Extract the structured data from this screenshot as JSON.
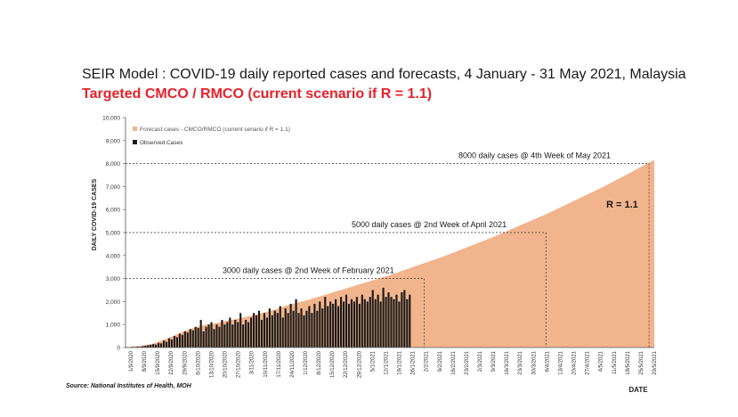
{
  "title": "SEIR Model : COVID-19 daily reported cases and forecasts, 4 January - 31 May 2021, Malaysia",
  "subtitle": "Targeted CMCO / RMCO (current scenario if R = 1.1)",
  "source": "Source: National Institutes of Health, MOH",
  "colors": {
    "forecast": "#f2b48c",
    "observed": "#1a1a1a",
    "subtitle": "#e8202a"
  },
  "chart_data": {
    "type": "bar",
    "title": "",
    "xlabel": "DATE",
    "ylabel": "DAILY COVID-19 CASES",
    "ylim": [
      0,
      10000
    ],
    "yticks": [
      0,
      1000,
      2000,
      3000,
      4000,
      5000,
      6000,
      7000,
      8000,
      9000,
      10000
    ],
    "ytick_labels": [
      "0",
      "1,000",
      "2,000",
      "3,000",
      "4,000",
      "5,000",
      "6,000",
      "7,000",
      "8,000",
      "9,000",
      "10,000"
    ],
    "xtick_labels": [
      "1/9/2020",
      "8/9/2020",
      "15/9/2020",
      "22/9/2020",
      "29/9/2020",
      "6/10/2020",
      "13/10/2020",
      "20/10/2020",
      "27/10/2020",
      "3/11/2020",
      "10/11/2020",
      "17/11/2020",
      "24/11/2020",
      "1/12/2020",
      "8/12/2020",
      "15/12/2020",
      "22/12/2020",
      "29/12/2020",
      "5/1/2021",
      "12/1/2021",
      "19/1/2021",
      "26/1/2021",
      "2/2/2021",
      "9/2/2021",
      "16/2/2021",
      "23/2/2021",
      "2/3/2021",
      "9/3/2021",
      "16/3/2021",
      "23/3/2021",
      "30/3/2021",
      "6/4/2021",
      "13/4/2021",
      "20/4/2021",
      "27/4/2021",
      "4/5/2021",
      "11/5/2021",
      "18/5/2021",
      "25/5/2021",
      "29/5/2021"
    ],
    "grid": false,
    "legend_position": "top-left",
    "legend": [
      "Forecast cases - CMCO/RMCO (current senario if R = 1.1)",
      "Observed Cases"
    ],
    "series": [
      {
        "name": "Forecast cases - CMCO/RMCO (current senario if R = 1.1)",
        "type": "area",
        "points": [
          [
            0,
            0
          ],
          [
            5,
            60
          ],
          [
            10,
            150
          ],
          [
            14,
            320
          ],
          [
            18,
            500
          ],
          [
            22,
            700
          ],
          [
            26,
            870
          ],
          [
            30,
            980
          ],
          [
            34,
            1060
          ],
          [
            38,
            1160
          ],
          [
            42,
            1240
          ],
          [
            46,
            1340
          ],
          [
            50,
            1450
          ],
          [
            54,
            1570
          ],
          [
            58,
            1700
          ],
          [
            60,
            1800
          ],
          [
            70,
            2100
          ],
          [
            80,
            2450
          ],
          [
            90,
            2800
          ],
          [
            100,
            3150
          ],
          [
            110,
            3550
          ],
          [
            120,
            3950
          ],
          [
            130,
            4400
          ],
          [
            140,
            4850
          ],
          [
            150,
            5350
          ],
          [
            160,
            5850
          ],
          [
            170,
            6400
          ],
          [
            180,
            6950
          ],
          [
            190,
            7550
          ],
          [
            198,
            8050
          ],
          [
            200,
            8150
          ]
        ]
      },
      {
        "name": "Observed Cases",
        "type": "bar",
        "values": [
          20,
          15,
          30,
          25,
          40,
          30,
          60,
          80,
          100,
          120,
          150,
          130,
          200,
          180,
          300,
          250,
          400,
          350,
          500,
          450,
          600,
          550,
          700,
          650,
          800,
          750,
          900,
          850,
          1200,
          700,
          900,
          1000,
          1100,
          800,
          1000,
          900,
          1200,
          1000,
          1100,
          1300,
          1000,
          1200,
          1100,
          1500,
          1000,
          1200,
          1100,
          1300,
          1500,
          1400,
          1600,
          1200,
          1500,
          1300,
          1700,
          1400,
          1600,
          1500,
          1800,
          1300,
          1700,
          1500,
          1900,
          1600,
          2100,
          1500,
          1700,
          1400,
          1600,
          1800,
          1500,
          1900,
          1600,
          2000,
          1700,
          2200,
          1800,
          2000,
          1900,
          2100,
          1800,
          2200,
          2000,
          2300,
          1900,
          2100,
          2000,
          2200,
          1900,
          2300,
          2100,
          2000,
          2200,
          2500,
          2100,
          2300,
          2000,
          2600,
          2200,
          2400,
          2200,
          2100,
          2300,
          2000,
          2400,
          2500,
          2100,
          2300
        ]
      }
    ],
    "annotations": [
      {
        "text": "3000 daily cases @ 2nd Week of February 2021",
        "x": 113,
        "y": 3000
      },
      {
        "text": "5000 daily cases @ 2nd Week of April 2021",
        "x": 159,
        "y": 5000
      },
      {
        "text": "8000 daily cases @ 4th Week of May 2021",
        "x": 198,
        "y": 8000
      },
      {
        "text": "R = 1.1",
        "x": 180,
        "y": 6100
      }
    ]
  }
}
